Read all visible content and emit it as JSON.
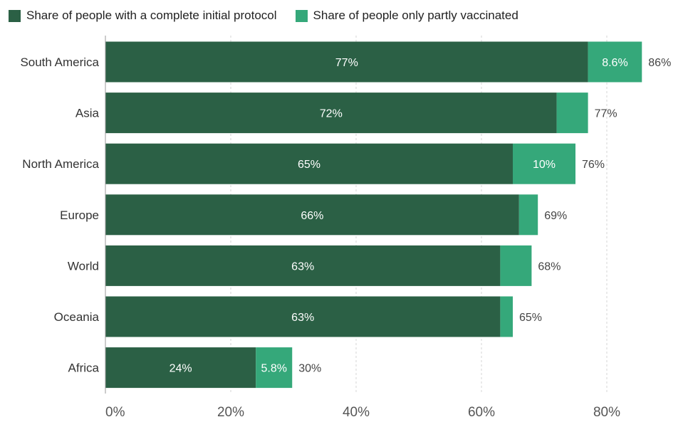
{
  "chart_data": {
    "type": "bar",
    "orientation": "horizontal",
    "stacked": true,
    "categories": [
      "South America",
      "Asia",
      "North America",
      "Europe",
      "World",
      "Oceania",
      "Africa"
    ],
    "series": [
      {
        "name": "Share of people with a complete initial protocol",
        "color": "#2b6045",
        "values": [
          77,
          72,
          65,
          66,
          63,
          63,
          24
        ],
        "labels": [
          "77%",
          "72%",
          "65%",
          "66%",
          "63%",
          "63%",
          "24%"
        ]
      },
      {
        "name": "Share of people only partly vaccinated",
        "color": "#35a87a",
        "values": [
          8.6,
          5,
          10,
          3,
          5,
          2,
          5.8
        ],
        "labels": [
          "8.6%",
          "",
          "10%",
          "",
          "",
          "",
          "5.8%"
        ]
      }
    ],
    "totals": [
      "86%",
      "77%",
      "76%",
      "69%",
      "68%",
      "65%",
      "30%"
    ],
    "x_ticks": [
      "0%",
      "20%",
      "40%",
      "60%",
      "80%"
    ],
    "x_tick_values": [
      0,
      20,
      40,
      60,
      80
    ],
    "xlim": [
      0,
      90
    ],
    "grid": true,
    "legend_position": "top-left"
  }
}
